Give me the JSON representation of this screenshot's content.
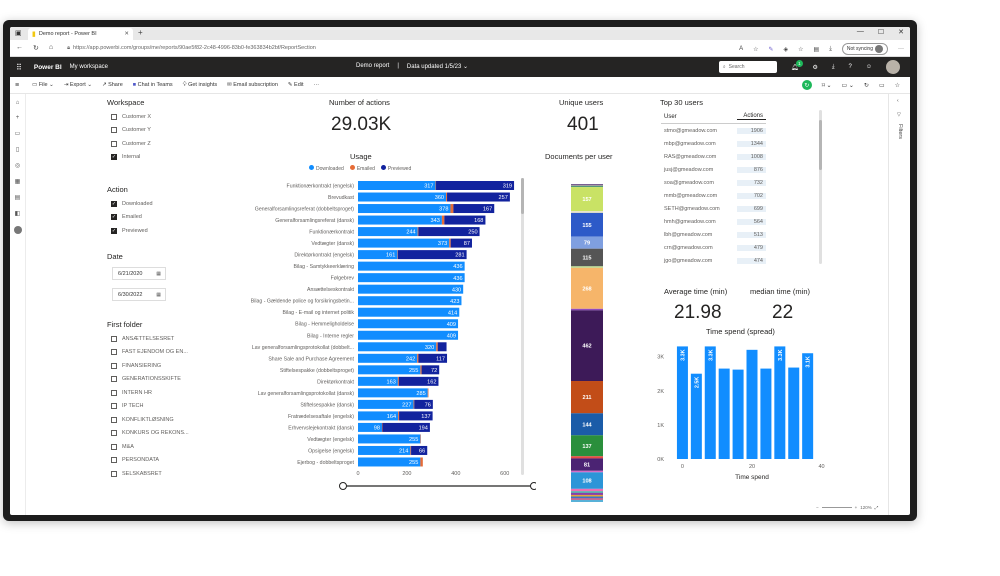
{
  "browser": {
    "tab_title": "Demo report - Power BI",
    "url": "https://app.powerbi.com/groups/me/reports/90ae5f82-2c48-4996-83b0-fe363834b2bf/ReportSection",
    "sync_label": "Not syncing"
  },
  "pbi_header": {
    "app_name": "Power BI",
    "workspace": "My workspace",
    "report_name": "Demo report",
    "separator": "|",
    "data_updated": "Data updated 1/5/23",
    "search_placeholder": "Search",
    "notif_count": "1"
  },
  "actionbar": {
    "file": "File",
    "export": "Export",
    "share": "Share",
    "chat": "Chat in Teams",
    "insights": "Get insights",
    "email": "Email subscription",
    "edit": "Edit",
    "more": "···"
  },
  "filters_label": "Filters",
  "workspace_slicer": {
    "title": "Workspace",
    "items": [
      {
        "label": "Customer X",
        "checked": false
      },
      {
        "label": "Customer Y",
        "checked": false
      },
      {
        "label": "Customer Z",
        "checked": false
      },
      {
        "label": "Internal",
        "checked": true
      }
    ]
  },
  "action_slicer": {
    "title": "Action",
    "items": [
      {
        "label": "Downloaded",
        "checked": true
      },
      {
        "label": "Emailed",
        "checked": true
      },
      {
        "label": "Previewed",
        "checked": true
      }
    ]
  },
  "date_slicer": {
    "title": "Date",
    "start": "6/21/2020",
    "end": "6/30/2022"
  },
  "folder_slicer": {
    "title": "First folder",
    "items": [
      "ANSÆTTELSESRET",
      "FAST EJENDOM OG EN...",
      "FINANSIERING",
      "GENERATIONSSKIFTE",
      "INTERN HR",
      "IP TECH",
      "KONFLIKTLØSNING",
      "KONKURS OG REKONS...",
      "M&A",
      "PERSONDATA",
      "SELSKABSRET"
    ]
  },
  "kpis": {
    "actions_title": "Number of actions",
    "actions_value": "29.03K",
    "users_title": "Unique users",
    "users_value": "401",
    "avg_title": "Average time (min)",
    "avg_value": "21.98",
    "median_title": "median time (min)",
    "median_value": "22"
  },
  "top_users": {
    "title": "Top 30 users",
    "col_user": "User",
    "col_actions": "Actions",
    "rows": [
      {
        "user": "stmo@gmeadow.com",
        "actions": "1906"
      },
      {
        "user": "mbp@gmeadow.com",
        "actions": "1344"
      },
      {
        "user": "RAS@gmeadow.com",
        "actions": "1008"
      },
      {
        "user": "jusj@gmeadow.com",
        "actions": "876"
      },
      {
        "user": "soa@gmeadow.com",
        "actions": "732"
      },
      {
        "user": "mmb@gmeadow.com",
        "actions": "702"
      },
      {
        "user": "SETH@gmeadow.com",
        "actions": "699"
      },
      {
        "user": "hmh@gmeadow.com",
        "actions": "564"
      },
      {
        "user": "lbh@gmeadow.com",
        "actions": "513"
      },
      {
        "user": "crn@gmeadow.com",
        "actions": "479"
      },
      {
        "user": "jgo@gmeadow.com",
        "actions": "474"
      }
    ]
  },
  "docs_per_user_title": "Documents per user",
  "spread_title": "Time spend (spread)",
  "colors": {
    "downloaded": "#118dff",
    "emailed": "#e66c37",
    "previewed": "#12239e"
  },
  "chart_data": [
    {
      "type": "bar",
      "title": "Usage",
      "orientation": "horizontal",
      "stacked": true,
      "legend": [
        "Downloaded",
        "Emailed",
        "Previewed"
      ],
      "xticks": [
        "0",
        "200",
        "400",
        "600"
      ],
      "xlim": [
        0,
        700
      ],
      "categories": [
        "Funktionærkontrakt (engelsk)",
        "Brevudkast",
        "Generalforsamlingsreferat (dobbeltsproget)",
        "Generalforsamlingsreferat (dansk)",
        "Funktionærkontrakt",
        "Vedtægter (dansk)",
        "Direktørkontrakt (engelsk)",
        "Bilag - Samtykkeerklæring",
        "Følgebrev",
        "Ansættelseskontrakt",
        "Bilag - Gældende police og forsikringsbetin...",
        "Bilag - E-mail og internet politik",
        "Bilag - Hemmeligholdelse",
        "Bilag - Interne regler",
        "Lav generalforsamlingsprotokollat (dobbelt...",
        "Share Sale and Purchase Agreement",
        "Stiftelsespakke (dobbeltsproget)",
        "Direktørkontrakt",
        "Lav generalforsamlingsprotokollat (dansk)",
        "Stiftelsespakke (dansk)",
        "Fratrædelsesaftale (engelsk)",
        "Erhvervslejekontrakt (dansk)",
        "Vedtægter (engelsk)",
        "Opsigelse (engelsk)",
        "Ejerbog - dobbeltsproget"
      ],
      "series": [
        {
          "name": "Downloaded",
          "values": [
            317,
            360,
            378,
            343,
            244,
            373,
            161,
            436,
            436,
            430,
            423,
            414,
            409,
            409,
            320,
            242,
            255,
            163,
            285,
            227,
            164,
            98,
            255,
            214,
            255
          ],
          "labels": [
            "317",
            "360",
            "378",
            "343",
            "244",
            "373",
            "161",
            "436",
            "436",
            "430",
            "423",
            "414",
            "409",
            "409",
            "320",
            "242",
            "255",
            "163",
            "285",
            "227",
            "164",
            "98",
            "255",
            "214",
            "255"
          ]
        },
        {
          "name": "Emailed",
          "values": [
            2,
            4,
            12,
            10,
            3,
            6,
            2,
            0,
            0,
            0,
            0,
            0,
            0,
            0,
            6,
            5,
            5,
            4,
            3,
            3,
            4,
            2,
            2,
            3,
            10
          ],
          "labels": []
        },
        {
          "name": "Previewed",
          "values": [
            319,
            257,
            167,
            168,
            250,
            87,
            281,
            0,
            0,
            0,
            0,
            0,
            0,
            0,
            36,
            117,
            72,
            162,
            0,
            76,
            137,
            194,
            0,
            66,
            0
          ],
          "labels": [
            "319",
            "257",
            "167",
            "168",
            "250",
            "87",
            "281",
            "",
            "",
            "",
            "",
            "",
            "",
            "",
            "",
            "117",
            "72",
            "162",
            "",
            "76",
            "137",
            "194",
            "",
            "66",
            ""
          ]
        }
      ]
    },
    {
      "type": "bar",
      "title": "Documents per user",
      "stacked": true,
      "orientation": "vertical",
      "segments": [
        {
          "value": 6,
          "color": "#6b4c8a",
          "label": ""
        },
        {
          "value": 8,
          "color": "#a0a0a0",
          "label": ""
        },
        {
          "value": 6,
          "color": "#3d8b66",
          "label": ""
        },
        {
          "value": 157,
          "color": "#c9e265",
          "label": "157"
        },
        {
          "value": 12,
          "color": "#e8e3c8",
          "label": ""
        },
        {
          "value": 155,
          "color": "#2d5ac8",
          "label": "155"
        },
        {
          "value": 79,
          "color": "#7f9fe0",
          "label": "79"
        },
        {
          "value": 115,
          "color": "#555555",
          "label": "115"
        },
        {
          "value": 10,
          "color": "#b7d98d",
          "label": ""
        },
        {
          "value": 268,
          "color": "#f6b56a",
          "label": "268"
        },
        {
          "value": 10,
          "color": "#8f4ac0",
          "label": ""
        },
        {
          "value": 462,
          "color": "#3d1a58",
          "label": "462"
        },
        {
          "value": 211,
          "color": "#c24d18",
          "label": "211"
        },
        {
          "value": 144,
          "color": "#1b5ca8",
          "label": "144"
        },
        {
          "value": 137,
          "color": "#2a8f3c",
          "label": "137"
        },
        {
          "value": 14,
          "color": "#e84a43",
          "label": ""
        },
        {
          "value": 81,
          "color": "#4b2373",
          "label": "81"
        },
        {
          "value": 10,
          "color": "#d66bc6",
          "label": ""
        },
        {
          "value": 108,
          "color": "#2c95d8",
          "label": "108"
        },
        {
          "value": 16,
          "color": "#ee6fb6",
          "label": ""
        },
        {
          "value": 10,
          "color": "#3ab6a4",
          "label": ""
        },
        {
          "value": 14,
          "color": "#8a3fa8",
          "label": ""
        },
        {
          "value": 10,
          "color": "#e6a43a",
          "label": ""
        },
        {
          "value": 12,
          "color": "#3b77c5",
          "label": ""
        },
        {
          "value": 10,
          "color": "#d04c7a",
          "label": ""
        },
        {
          "value": 14,
          "color": "#58b1d8",
          "label": ""
        }
      ]
    },
    {
      "type": "bar",
      "title": "Time spend (spread)",
      "xlabel": "Time spend",
      "yticks": [
        "0K",
        "1K",
        "2K",
        "3K"
      ],
      "ylim": [
        0,
        3400
      ],
      "xticks": [
        "0",
        "20",
        "40"
      ],
      "xlim": [
        -3,
        43
      ],
      "bars": [
        {
          "x": 0,
          "value": 3300,
          "label": "3.3K"
        },
        {
          "x": 4,
          "value": 2500,
          "label": "2.5K"
        },
        {
          "x": 8,
          "value": 3300,
          "label": "3.3K"
        },
        {
          "x": 12,
          "value": 2650,
          "label": ""
        },
        {
          "x": 16,
          "value": 2620,
          "label": ""
        },
        {
          "x": 20,
          "value": 3200,
          "label": ""
        },
        {
          "x": 24,
          "value": 2650,
          "label": ""
        },
        {
          "x": 28,
          "value": 3300,
          "label": "3.3K"
        },
        {
          "x": 32,
          "value": 2680,
          "label": ""
        },
        {
          "x": 36,
          "value": 3100,
          "label": "3.1K"
        }
      ]
    }
  ],
  "zoom": "120%"
}
